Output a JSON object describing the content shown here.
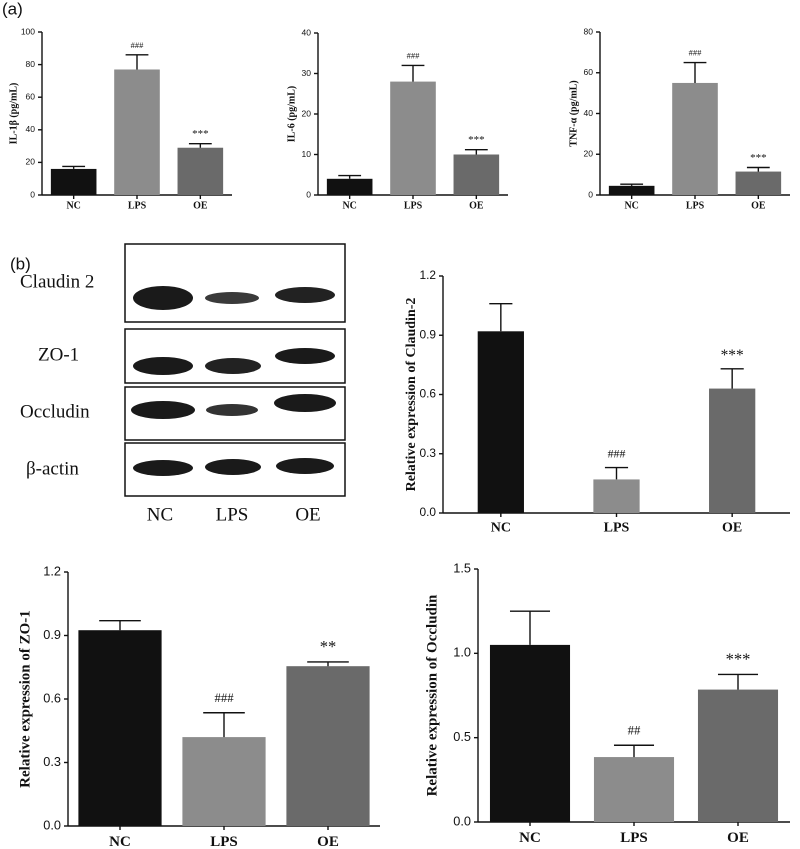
{
  "panel_labels": [
    "(a)",
    "(b)"
  ],
  "blot": {
    "rows": [
      "Claudin 2",
      "ZO-1",
      "Occludin",
      "β-actin"
    ],
    "lanes": [
      "NC",
      "LPS",
      "OE"
    ]
  },
  "chart_data": [
    {
      "type": "bar",
      "ylabel": "IL-1β (pg/mL)",
      "categories": [
        "NC",
        "LPS",
        "OE"
      ],
      "values": [
        16,
        77,
        29
      ],
      "errors": [
        1.5,
        9,
        2.5
      ],
      "annotations": [
        null,
        "###",
        "***"
      ],
      "colors": [
        "#111111",
        "#8c8c8c",
        "#6a6a6a"
      ],
      "ylim": [
        0,
        100
      ],
      "yticks": [
        0,
        20,
        40,
        60,
        80,
        100
      ]
    },
    {
      "type": "bar",
      "ylabel": "IL-6 (pg/mL)",
      "categories": [
        "NC",
        "LPS",
        "OE"
      ],
      "values": [
        4,
        28,
        10
      ],
      "errors": [
        0.8,
        4,
        1.2
      ],
      "annotations": [
        null,
        "###",
        "***"
      ],
      "colors": [
        "#111111",
        "#8c8c8c",
        "#6a6a6a"
      ],
      "ylim": [
        0,
        40
      ],
      "yticks": [
        0,
        10,
        20,
        30,
        40
      ]
    },
    {
      "type": "bar",
      "ylabel": "TNF-α (pg/mL)",
      "categories": [
        "NC",
        "LPS",
        "OE"
      ],
      "values": [
        4.5,
        55,
        11.5
      ],
      "errors": [
        0.8,
        10,
        2
      ],
      "annotations": [
        null,
        "###",
        "***"
      ],
      "colors": [
        "#111111",
        "#8c8c8c",
        "#6a6a6a"
      ],
      "ylim": [
        0,
        80
      ],
      "yticks": [
        0,
        20,
        40,
        60,
        80
      ]
    },
    {
      "type": "bar",
      "ylabel": "Relative expression of Claudin-2",
      "categories": [
        "NC",
        "LPS",
        "OE"
      ],
      "values": [
        0.92,
        0.17,
        0.63
      ],
      "errors": [
        0.14,
        0.06,
        0.1
      ],
      "annotations": [
        null,
        "###",
        "***"
      ],
      "colors": [
        "#111111",
        "#8c8c8c",
        "#6a6a6a"
      ],
      "ylim": [
        0,
        1.2
      ],
      "yticks": [
        {
          "value": 0,
          "label": "0.0"
        },
        0.3,
        0.6,
        0.9,
        1.2
      ]
    },
    {
      "type": "bar",
      "ylabel": "Relative expression of ZO-1",
      "categories": [
        "NC",
        "LPS",
        "OE"
      ],
      "values": [
        0.925,
        0.42,
        0.755
      ],
      "errors": [
        0.045,
        0.115,
        0.02
      ],
      "annotations": [
        null,
        "###",
        "**"
      ],
      "colors": [
        "#111111",
        "#8c8c8c",
        "#6a6a6a"
      ],
      "ylim": [
        0,
        1.2
      ],
      "yticks": [
        {
          "value": 0,
          "label": "0.0"
        },
        0.3,
        0.6,
        0.9,
        1.2
      ]
    },
    {
      "type": "bar",
      "ylabel": "Relative expression of Occludin",
      "categories": [
        "NC",
        "LPS",
        "OE"
      ],
      "values": [
        1.05,
        0.385,
        0.785
      ],
      "errors": [
        0.2,
        0.07,
        0.09
      ],
      "annotations": [
        null,
        "##",
        "***"
      ],
      "colors": [
        "#111111",
        "#8c8c8c",
        "#6a6a6a"
      ],
      "ylim": [
        0,
        1.5
      ],
      "yticks": [
        {
          "value": 0,
          "label": "0.0"
        },
        0.5,
        {
          "value": 1,
          "label": "1.0"
        },
        1.5
      ]
    }
  ]
}
